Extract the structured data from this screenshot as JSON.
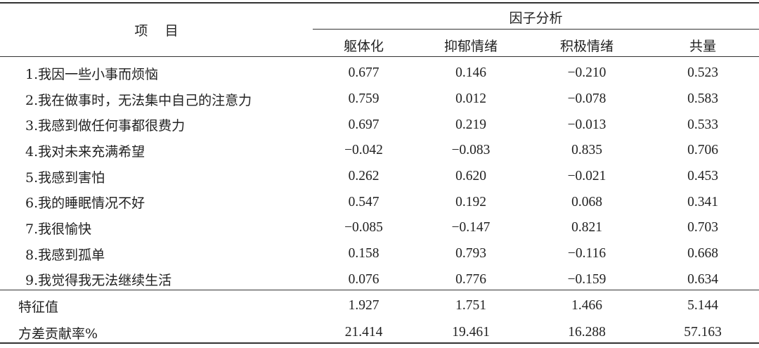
{
  "header": {
    "item_label": "项    目",
    "group_label": "因子分析",
    "columns": [
      "躯体化",
      "抑郁情绪",
      "积极情绪",
      "共量"
    ]
  },
  "rows": [
    {
      "label": "1.我因一些小事而烦恼",
      "values": [
        "0.677",
        "0.146",
        "−0.210",
        "0.523"
      ]
    },
    {
      "label": "2.我在做事时，无法集中自己的注意力",
      "values": [
        "0.759",
        "0.012",
        "−0.078",
        "0.583"
      ]
    },
    {
      "label": "3.我感到做任何事都很费力",
      "values": [
        "0.697",
        "0.219",
        "−0.013",
        "0.533"
      ]
    },
    {
      "label": "4.我对未来充满希望",
      "values": [
        "−0.042",
        "−0.083",
        "0.835",
        "0.706"
      ]
    },
    {
      "label": "5.我感到害怕",
      "values": [
        "0.262",
        "0.620",
        "−0.021",
        "0.453"
      ]
    },
    {
      "label": "6.我的睡眠情况不好",
      "values": [
        "0.547",
        "0.192",
        "0.068",
        "0.341"
      ]
    },
    {
      "label": "7.我很愉快",
      "values": [
        "−0.085",
        "−0.147",
        "0.821",
        "0.703"
      ]
    },
    {
      "label": "8.我感到孤单",
      "values": [
        "0.158",
        "0.793",
        "−0.116",
        "0.668"
      ]
    },
    {
      "label": "9.我觉得我无法继续生活",
      "values": [
        "0.076",
        "0.776",
        "−0.159",
        "0.634"
      ]
    }
  ],
  "summary": [
    {
      "label": "特征值",
      "values": [
        "1.927",
        "1.751",
        "1.466",
        "5.144"
      ]
    },
    {
      "label": "方差贡献率%",
      "values": [
        "21.414",
        "19.461",
        "16.288",
        "57.163"
      ]
    }
  ]
}
